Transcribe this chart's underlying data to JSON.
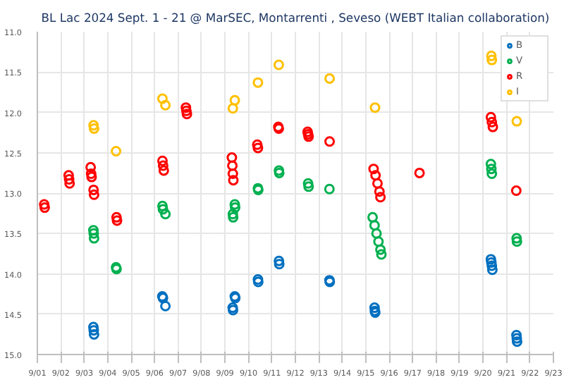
{
  "chart_data": {
    "type": "scatter",
    "title": "BL Lac 2024 Sept. 1 - 21 @ MarSEC, Montarrenti , Seveso (WEBT Italian collaboration)",
    "series": [
      {
        "name": "B",
        "color": "#0070c0",
        "x": [
          "2024-09-03T09:20",
          "2024-09-03T09:40",
          "2024-09-03T10:00",
          "2024-09-06T07:50",
          "2024-09-06T08:30",
          "2024-09-06T11:00",
          "2024-09-09T07:50",
          "2024-09-09T08:10",
          "2024-09-09T10:00",
          "2024-09-09T10:30",
          "2024-09-10T09:40",
          "2024-09-10T10:00",
          "2024-09-11T07:10",
          "2024-09-11T07:30",
          "2024-09-13T10:50",
          "2024-09-13T11:10",
          "2024-09-15T09:00",
          "2024-09-15T09:20",
          "2024-09-15T09:40",
          "2024-09-20T08:00",
          "2024-09-20T08:30",
          "2024-09-20T09:00",
          "2024-09-20T09:30",
          "2024-09-21T10:10",
          "2024-09-21T10:30",
          "2024-09-21T10:50"
        ],
        "values": [
          14.66,
          14.7,
          14.75,
          14.28,
          14.3,
          14.4,
          14.42,
          14.45,
          14.28,
          14.3,
          14.07,
          14.1,
          13.84,
          13.88,
          14.08,
          14.1,
          14.42,
          14.46,
          14.48,
          13.82,
          13.86,
          13.9,
          13.95,
          14.76,
          14.8,
          14.84
        ]
      },
      {
        "name": "V",
        "color": "#00b050",
        "x": [
          "2024-09-03T09:20",
          "2024-09-03T09:40",
          "2024-09-03T10:00",
          "2024-09-04T08:30",
          "2024-09-04T09:00",
          "2024-09-06T08:00",
          "2024-09-06T08:30",
          "2024-09-06T11:00",
          "2024-09-09T08:00",
          "2024-09-09T08:20",
          "2024-09-09T10:00",
          "2024-09-09T10:20",
          "2024-09-10T09:40",
          "2024-09-10T10:00",
          "2024-09-11T07:10",
          "2024-09-11T07:30",
          "2024-09-12T13:00",
          "2024-09-12T13:30",
          "2024-09-13T10:50",
          "2024-09-15T07:00",
          "2024-09-15T09:00",
          "2024-09-15T11:00",
          "2024-09-15T13:00",
          "2024-09-15T15:00",
          "2024-09-15T16:00",
          "2024-09-20T08:00",
          "2024-09-20T08:30",
          "2024-09-20T09:00",
          "2024-09-21T10:20",
          "2024-09-21T10:40"
        ],
        "values": [
          13.46,
          13.5,
          13.56,
          13.92,
          13.94,
          13.16,
          13.2,
          13.26,
          13.26,
          13.3,
          13.14,
          13.18,
          12.94,
          12.96,
          12.72,
          12.75,
          12.88,
          12.92,
          12.95,
          13.3,
          13.4,
          13.5,
          13.6,
          13.7,
          13.76,
          12.64,
          12.7,
          12.76,
          13.56,
          13.6
        ]
      },
      {
        "name": "R",
        "color": "#ff0000",
        "x": [
          "2024-09-01T07:00",
          "2024-09-01T07:30",
          "2024-09-02T08:00",
          "2024-09-02T08:30",
          "2024-09-02T09:00",
          "2024-09-03T06:30",
          "2024-09-03T07:00",
          "2024-09-03T07:30",
          "2024-09-03T09:30",
          "2024-09-03T10:00",
          "2024-09-04T09:00",
          "2024-09-04T09:30",
          "2024-09-06T08:00",
          "2024-09-06T08:40",
          "2024-09-06T09:20",
          "2024-09-07T08:00",
          "2024-09-07T08:30",
          "2024-09-07T09:00",
          "2024-09-09T07:00",
          "2024-09-09T07:30",
          "2024-09-09T08:00",
          "2024-09-09T08:30",
          "2024-09-10T09:00",
          "2024-09-10T09:40",
          "2024-09-11T06:30",
          "2024-09-11T07:00",
          "2024-09-12T12:30",
          "2024-09-12T13:00",
          "2024-09-12T13:30",
          "2024-09-13T11:00",
          "2024-09-15T08:00",
          "2024-09-15T10:00",
          "2024-09-15T12:00",
          "2024-09-15T14:00",
          "2024-09-15T15:00",
          "2024-09-17T07:00",
          "2024-09-20T08:00",
          "2024-09-20T09:00",
          "2024-09-20T10:00",
          "2024-09-21T10:00"
        ],
        "values": [
          13.14,
          13.18,
          12.78,
          12.83,
          12.88,
          12.68,
          12.76,
          12.8,
          12.96,
          13.02,
          13.3,
          13.34,
          12.6,
          12.66,
          12.72,
          11.94,
          11.98,
          12.02,
          12.56,
          12.66,
          12.76,
          12.84,
          12.4,
          12.44,
          12.18,
          12.2,
          12.24,
          12.27,
          12.3,
          12.36,
          12.7,
          12.78,
          12.88,
          12.98,
          13.05,
          12.75,
          12.06,
          12.12,
          12.18,
          12.97
        ]
      },
      {
        "name": "I",
        "color": "#ffc000",
        "x": [
          "2024-09-03T09:30",
          "2024-09-03T10:00",
          "2024-09-04T08:30",
          "2024-09-06T08:00",
          "2024-09-06T11:00",
          "2024-09-09T08:00",
          "2024-09-09T10:00",
          "2024-09-10T09:40",
          "2024-09-11T07:00",
          "2024-09-13T11:00",
          "2024-09-15T09:30",
          "2024-09-20T08:30",
          "2024-09-20T09:00",
          "2024-09-21T10:30"
        ],
        "values": [
          12.16,
          12.2,
          12.48,
          11.83,
          11.91,
          11.95,
          11.85,
          11.63,
          11.41,
          11.58,
          11.94,
          11.3,
          11.35,
          12.11
        ]
      }
    ],
    "xlim": [
      "2024-09-01",
      "2024-09-23"
    ],
    "xticks": [
      {
        "value": "2024-09-01",
        "label": "9/01"
      },
      {
        "value": "2024-09-02",
        "label": "9/02"
      },
      {
        "value": "2024-09-03",
        "label": "9/03"
      },
      {
        "value": "2024-09-04",
        "label": "9/04"
      },
      {
        "value": "2024-09-05",
        "label": "9/05"
      },
      {
        "value": "2024-09-06",
        "label": "9/06"
      },
      {
        "value": "2024-09-07",
        "label": "9/07"
      },
      {
        "value": "2024-09-08",
        "label": "9/08"
      },
      {
        "value": "2024-09-09",
        "label": "9/09"
      },
      {
        "value": "2024-09-10",
        "label": "9/10"
      },
      {
        "value": "2024-09-11",
        "label": "9/11"
      },
      {
        "value": "2024-09-12",
        "label": "9/12"
      },
      {
        "value": "2024-09-13",
        "label": "9/13"
      },
      {
        "value": "2024-09-14",
        "label": "9/14"
      },
      {
        "value": "2024-09-15",
        "label": "9/15"
      },
      {
        "value": "2024-09-16",
        "label": "9/16"
      },
      {
        "value": "2024-09-17",
        "label": "9/17"
      },
      {
        "value": "2024-09-18",
        "label": "9/18"
      },
      {
        "value": "2024-09-19",
        "label": "9/19"
      },
      {
        "value": "2024-09-20",
        "label": "9/20"
      },
      {
        "value": "2024-09-21",
        "label": "9/21"
      },
      {
        "value": "2024-09-22",
        "label": "9/22"
      },
      {
        "value": "2024-09-23",
        "label": "9/23"
      }
    ],
    "ylim": [
      15.0,
      11.0
    ],
    "yticks": [
      {
        "value": 11,
        "label": "11.0"
      },
      {
        "value": 11.5,
        "label": "11.5"
      },
      {
        "value": 12,
        "label": "12.0"
      },
      {
        "value": 12.5,
        "label": "12.5"
      },
      {
        "value": 13,
        "label": "13.0"
      },
      {
        "value": 13.5,
        "label": "13.5"
      },
      {
        "value": 14,
        "label": "14.0"
      },
      {
        "value": 14.5,
        "label": "14.5"
      },
      {
        "value": 15,
        "label": "15.0"
      }
    ],
    "grid": true,
    "legend": "top right",
    "marker": "circle"
  }
}
